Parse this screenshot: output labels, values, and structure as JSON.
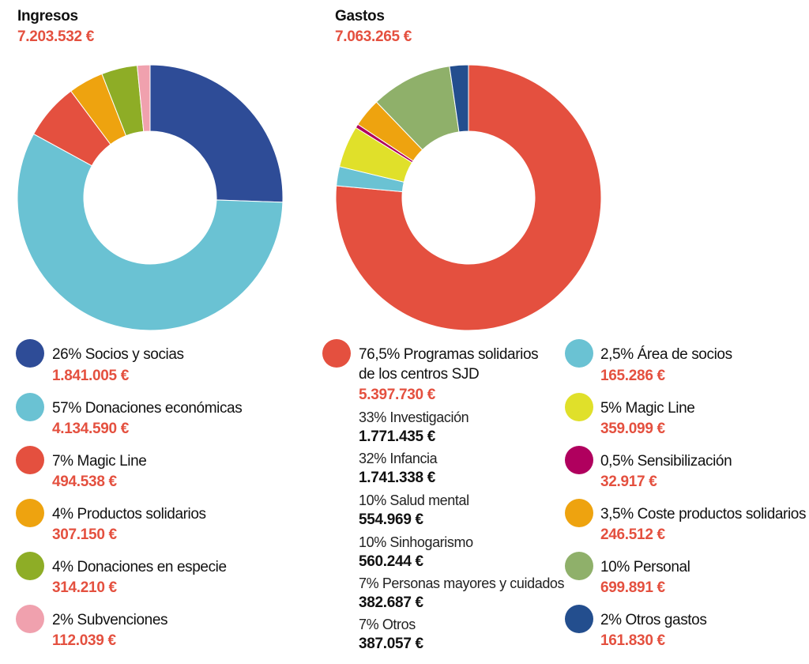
{
  "chart_data": [
    {
      "type": "pie",
      "title": "Ingresos",
      "total": "7.203.532 €",
      "colors": [
        "#2e4c97",
        "#6ac2d3",
        "#e4503f",
        "#eea30f",
        "#8ead26",
        "#f0a1ae"
      ],
      "series": [
        {
          "label": "26% Socios y socias",
          "value_label": "1.841.005 €",
          "value": 1841005
        },
        {
          "label": "57% Donaciones económicas",
          "value_label": "4.134.590 €",
          "value": 4134590
        },
        {
          "label": "7% Magic Line",
          "value_label": "494.538 €",
          "value": 494538
        },
        {
          "label": "4% Productos solidarios",
          "value_label": "307.150 €",
          "value": 307150
        },
        {
          "label": "4% Donaciones en especie",
          "value_label": "314.210 €",
          "value": 314210
        },
        {
          "label": "2% Subvenciones",
          "value_label": "112.039 €",
          "value": 112039
        }
      ]
    },
    {
      "type": "pie",
      "title": "Gastos",
      "total": "7.063.265 €",
      "colors": [
        "#e4503f",
        "#6ac2d3",
        "#e0e02a",
        "#b0005e",
        "#eea30f",
        "#8fb06a",
        "#234e8e"
      ],
      "series": [
        {
          "label": "76,5% Programas solidarios de los centros SJD",
          "label_line1": "76,5% Programas solidarios",
          "label_line2": "de los centros SJD",
          "value_label": "5.397.730 €",
          "value": 5397730,
          "breakdown": [
            {
              "label": "33% Investigación",
              "value_label": "1.771.435 €"
            },
            {
              "label": "32% Infancia",
              "value_label": "1.741.338 €"
            },
            {
              "label": "10% Salud mental",
              "value_label": "554.969 €"
            },
            {
              "label": "10% Sinhogarismo",
              "value_label": "560.244 €"
            },
            {
              "label": "7% Personas mayores y cuidados",
              "value_label": "382.687 €"
            },
            {
              "label": "7% Otros",
              "value_label": "387.057 €"
            }
          ]
        },
        {
          "label": "2,5% Área de socios",
          "value_label": "165.286 €",
          "value": 165286
        },
        {
          "label": "5% Magic Line",
          "value_label": "359.099 €",
          "value": 359099
        },
        {
          "label": "0,5% Sensibilización",
          "value_label": "32.917 €",
          "value": 32917
        },
        {
          "label": "3,5% Coste productos solidarios",
          "value_label": "246.512 €",
          "value": 246512
        },
        {
          "label": "10% Personal",
          "value_label": "699.891 €",
          "value": 699891
        },
        {
          "label": "2% Otros gastos",
          "value_label": "161.830 €",
          "value": 161830
        }
      ]
    }
  ]
}
